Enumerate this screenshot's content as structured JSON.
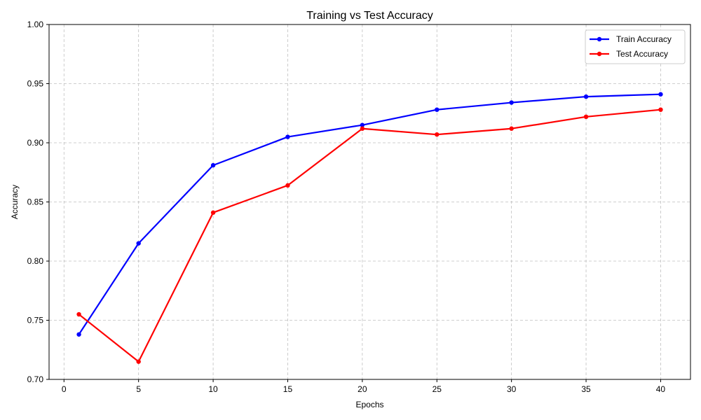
{
  "chart_data": {
    "type": "line",
    "title": "Training vs Test Accuracy",
    "xlabel": "Epochs",
    "ylabel": "Accuracy",
    "xlim": [
      -1,
      42
    ],
    "ylim": [
      0.7,
      1.0
    ],
    "xticks": [
      0,
      5,
      10,
      15,
      20,
      25,
      30,
      35,
      40
    ],
    "xtick_labels": [
      "0",
      "5",
      "10",
      "15",
      "20",
      "25",
      "30",
      "35",
      "40"
    ],
    "yticks": [
      0.7,
      0.75,
      0.8,
      0.85,
      0.9,
      0.95,
      1.0
    ],
    "ytick_labels": [
      "0.70",
      "0.75",
      "0.80",
      "0.85",
      "0.90",
      "0.95",
      "1.00"
    ],
    "grid": true,
    "legend_position": "top-right",
    "x": [
      1,
      5,
      10,
      15,
      20,
      25,
      30,
      35,
      40
    ],
    "series": [
      {
        "name": "Train Accuracy",
        "color": "#0000ff",
        "marker": "circle",
        "values": [
          0.738,
          0.815,
          0.881,
          0.905,
          0.915,
          0.928,
          0.934,
          0.939,
          0.941
        ]
      },
      {
        "name": "Test Accuracy",
        "color": "#ff0000",
        "marker": "circle",
        "values": [
          0.755,
          0.715,
          0.841,
          0.864,
          0.912,
          0.907,
          0.912,
          0.922,
          0.928
        ]
      }
    ]
  }
}
